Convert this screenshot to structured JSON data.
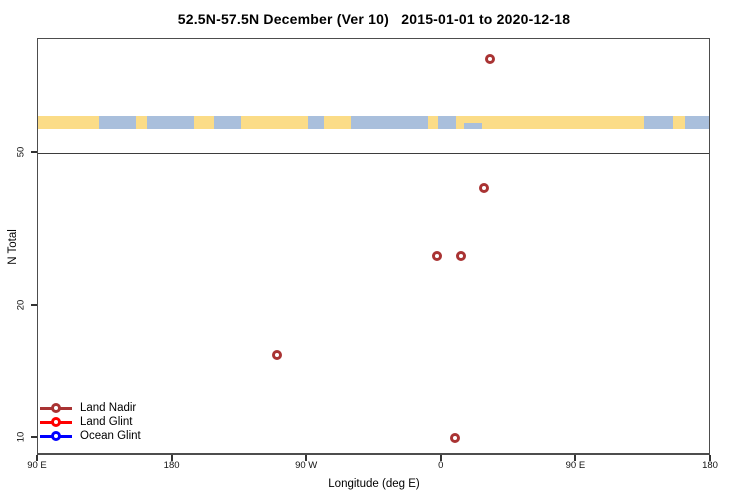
{
  "title": "52.5N-57.5N December (Ver 10)   2015-01-01 to 2020-12-18",
  "axes": {
    "x": {
      "label": "Longitude (deg E)",
      "ticks": [
        {
          "t": 90,
          "label": "90 E"
        },
        {
          "t": 180,
          "label": "180"
        },
        {
          "t": 270,
          "label": "90 W"
        },
        {
          "t": 360,
          "label": "0"
        },
        {
          "t": 450,
          "label": "90 E"
        },
        {
          "t": 540,
          "label": "180"
        }
      ]
    },
    "y": {
      "label": "N Total",
      "scale": "log",
      "ticks": [
        {
          "v": 50,
          "label": "50"
        },
        {
          "v": 20,
          "label": "20"
        },
        {
          "v": 10,
          "label": "10"
        }
      ]
    }
  },
  "reference_line": {
    "value": 50
  },
  "map_band": {
    "land_color": "#FBDC87",
    "ocean_color": "#A9BFDC",
    "segments": [
      {
        "type": "land",
        "a": 0.0,
        "b": 0.091
      },
      {
        "type": "ocean",
        "a": 0.091,
        "b": 0.146
      },
      {
        "type": "land",
        "a": 0.146,
        "b": 0.162
      },
      {
        "type": "ocean",
        "a": 0.162,
        "b": 0.232
      },
      {
        "type": "land",
        "a": 0.232,
        "b": 0.262
      },
      {
        "type": "ocean",
        "a": 0.262,
        "b": 0.302
      },
      {
        "type": "land",
        "a": 0.302,
        "b": 0.401
      },
      {
        "type": "ocean",
        "a": 0.401,
        "b": 0.425
      },
      {
        "type": "land",
        "a": 0.425,
        "b": 0.465
      },
      {
        "type": "ocean",
        "a": 0.465,
        "b": 0.579
      },
      {
        "type": "land",
        "a": 0.579,
        "b": 0.594
      },
      {
        "type": "ocean",
        "a": 0.594,
        "b": 0.621
      },
      {
        "type": "land",
        "a": 0.621,
        "b": 0.9
      },
      {
        "type": "ocean",
        "a": 0.9,
        "b": 0.944
      },
      {
        "type": "land",
        "a": 0.944,
        "b": 0.961
      },
      {
        "type": "ocean",
        "a": 0.961,
        "b": 1.0
      },
      {
        "type": "ocean",
        "a": 0.633,
        "b": 0.66,
        "h": 0.5,
        "v": "bottom"
      }
    ]
  },
  "legend": {
    "items": [
      {
        "label": "Land Nadir",
        "color": "#a93333"
      },
      {
        "label": "Land Glint",
        "color": "#ff0000"
      },
      {
        "label": "Ocean Glint",
        "color": "#0000ff"
      }
    ]
  },
  "chart_data": {
    "type": "scatter",
    "title": "52.5N-57.5N December (Ver 10)   2015-01-01 to 2020-12-18",
    "xlabel": "Longitude (deg E)",
    "ylabel": "N Total",
    "y_scale": "log",
    "y_ticks": [
      10,
      20,
      50
    ],
    "x_tick_labels": [
      "90 E",
      "180",
      "90 W",
      "0",
      "90 E",
      "180"
    ],
    "x_axis_span_deg_east_from": 90,
    "x_axis_span_deg_east_to": 540,
    "legend_position": "bottom-left",
    "grid": false,
    "series": [
      {
        "name": "Land Nadir",
        "color": "#a93333",
        "marker": "open-circle",
        "points": [
          {
            "lon_deg_e": 32,
            "n_total": 85
          },
          {
            "lon_deg_e": 28,
            "n_total": 41
          },
          {
            "lon_deg_e": -3,
            "n_total": 28
          },
          {
            "lon_deg_e": 13,
            "n_total": 28
          },
          {
            "lon_deg_e": -110,
            "n_total": 16
          },
          {
            "lon_deg_e": 9,
            "n_total": 10
          }
        ]
      },
      {
        "name": "Land Glint",
        "color": "#ff0000",
        "marker": "open-circle",
        "points": []
      },
      {
        "name": "Ocean Glint",
        "color": "#0000ff",
        "marker": "open-circle",
        "points": []
      }
    ],
    "annotations": [
      {
        "type": "horizontal_line",
        "y": 50
      },
      {
        "type": "world-map-strip",
        "description": "land/ocean strip for latitude band 52.5N-57.5N drawn across plot near N=65"
      }
    ]
  }
}
